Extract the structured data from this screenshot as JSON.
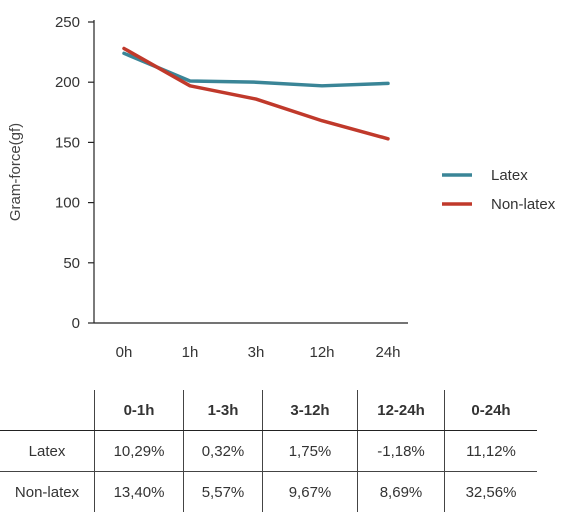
{
  "chart_data": {
    "type": "line",
    "title": "",
    "xlabel": "",
    "ylabel": "Gram-force(gf)",
    "categories": [
      "0h",
      "1h",
      "3h",
      "12h",
      "24h"
    ],
    "ylim": [
      0,
      250
    ],
    "yticks": [
      0,
      50,
      100,
      150,
      200,
      250
    ],
    "grid": false,
    "legend_position": "right",
    "series": [
      {
        "name": "Latex",
        "color": "#3a8597",
        "values": [
          224,
          201,
          200,
          197,
          199
        ]
      },
      {
        "name": "Non-latex",
        "color": "#c0392b",
        "values": [
          228,
          197,
          186,
          168,
          153
        ]
      }
    ]
  },
  "table": {
    "headers": [
      "",
      "0-1h",
      "1-3h",
      "3-12h",
      "12-24h",
      "0-24h"
    ],
    "rows": [
      {
        "label": "Latex",
        "cells": [
          "10,29%",
          "0,32%",
          "1,75%",
          "-1,18%",
          "11,12%"
        ]
      },
      {
        "label": "Non-latex",
        "cells": [
          "13,40%",
          "5,57%",
          "9,67%",
          "8,69%",
          "32,56%"
        ]
      }
    ]
  }
}
